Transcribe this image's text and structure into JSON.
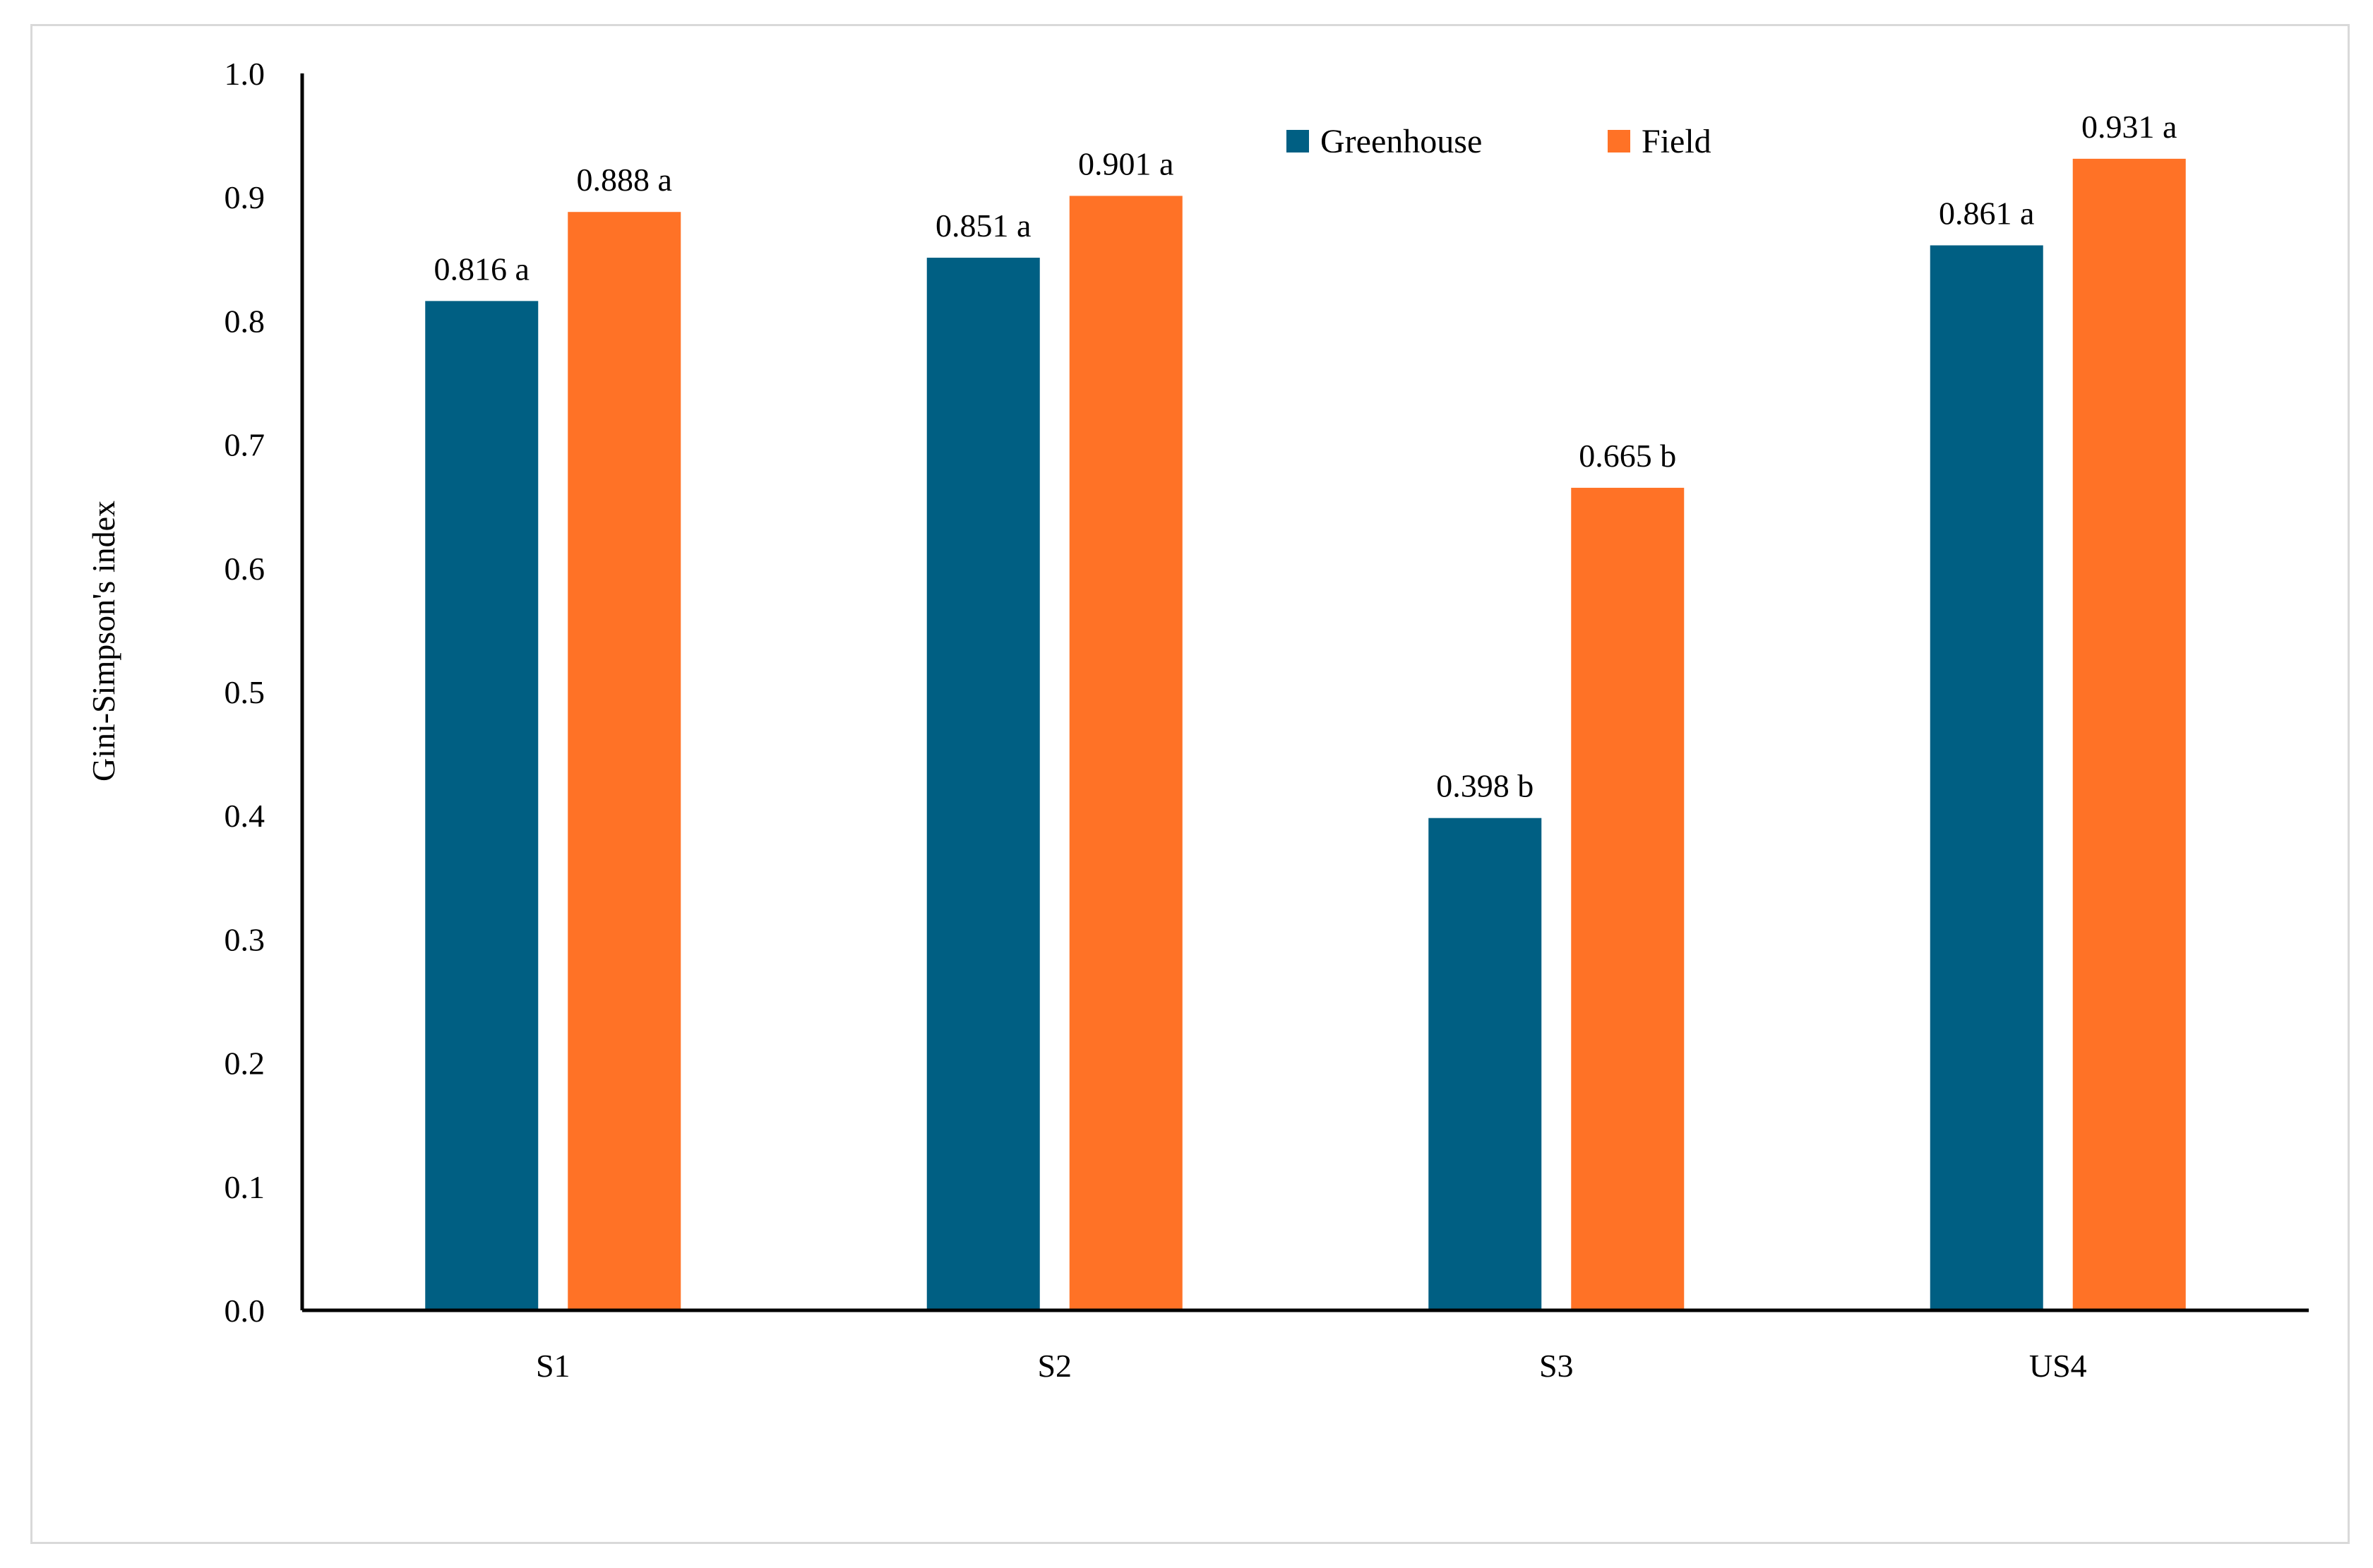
{
  "chart_data": {
    "type": "bar",
    "categories": [
      "S1",
      "S2",
      "S3",
      "US4"
    ],
    "series": [
      {
        "name": "Greenhouse",
        "color": "#005F83",
        "values": [
          0.816,
          0.851,
          0.398,
          0.861
        ],
        "labels": [
          "0.816 a",
          "0.851 a",
          "0.398 b",
          "0.861 a"
        ]
      },
      {
        "name": "Field",
        "color": "#FF7226",
        "values": [
          0.888,
          0.901,
          0.665,
          0.931
        ],
        "labels": [
          "0.888 a",
          "0.901 a",
          "0.665 b",
          "0.931 a"
        ]
      }
    ],
    "title": "",
    "xlabel": "",
    "ylabel": "Gini-Simpson's index",
    "ylim": [
      0,
      1.0
    ],
    "yticks": [
      "0.0",
      "0.1",
      "0.2",
      "0.3",
      "0.4",
      "0.5",
      "0.6",
      "0.7",
      "0.8",
      "0.9",
      "1.0"
    ],
    "grid": false,
    "legend_position": "top-center"
  }
}
